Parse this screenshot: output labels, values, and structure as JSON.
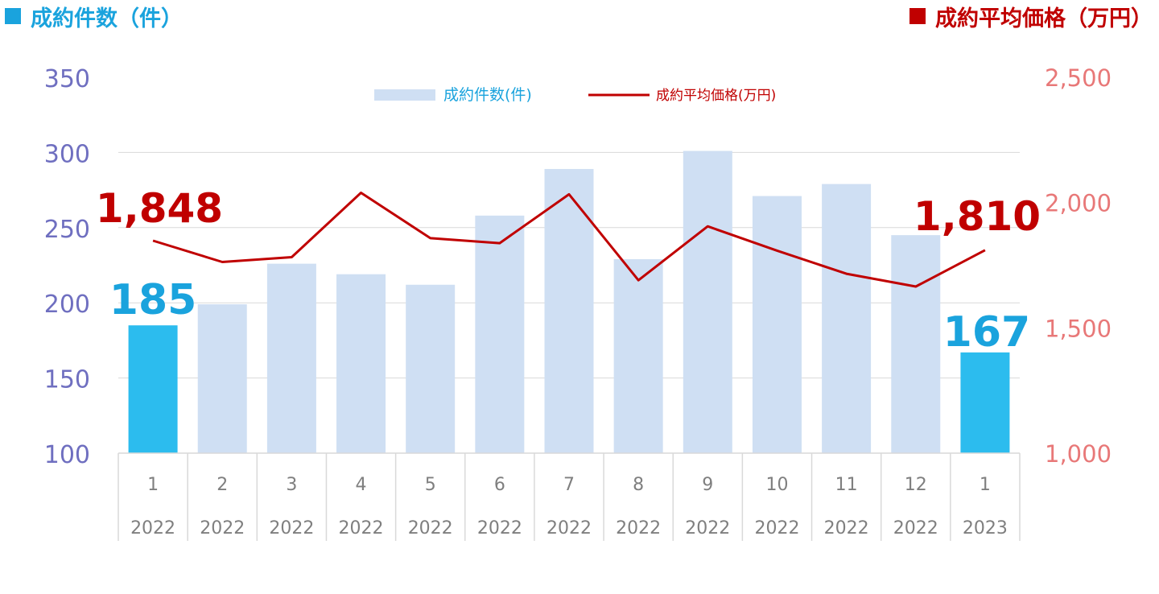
{
  "header": {
    "left_title": "成約件数（件）",
    "right_title": "成約平均価格（万円）"
  },
  "chart_data": {
    "type": "bar",
    "categories": [
      {
        "month": "1",
        "year": "2022"
      },
      {
        "month": "2",
        "year": "2022"
      },
      {
        "month": "3",
        "year": "2022"
      },
      {
        "month": "4",
        "year": "2022"
      },
      {
        "month": "5",
        "year": "2022"
      },
      {
        "month": "6",
        "year": "2022"
      },
      {
        "month": "7",
        "year": "2022"
      },
      {
        "month": "8",
        "year": "2022"
      },
      {
        "month": "9",
        "year": "2022"
      },
      {
        "month": "10",
        "year": "2022"
      },
      {
        "month": "11",
        "year": "2022"
      },
      {
        "month": "12",
        "year": "2022"
      },
      {
        "month": "1",
        "year": "2023"
      }
    ],
    "series": [
      {
        "name": "成約件数(件)",
        "type": "bar",
        "axis": "left",
        "values": [
          185,
          199,
          226,
          219,
          212,
          258,
          289,
          229,
          301,
          271,
          279,
          245,
          167
        ],
        "highlight_indices": [
          0,
          12
        ],
        "color": "#cfdff3",
        "highlight_color": "#2cbcee"
      },
      {
        "name": "成約平均価格(万円)",
        "type": "line",
        "axis": "right",
        "values": [
          1848,
          1763,
          1782,
          2039,
          1858,
          1838,
          2033,
          1690,
          1905,
          1808,
          1716,
          1665,
          1810
        ],
        "color": "#c00000"
      }
    ],
    "y_left": {
      "min": 100,
      "max": 350,
      "ticks": [
        100,
        150,
        200,
        250,
        300,
        350
      ],
      "color": "#6f6fc0"
    },
    "y_right": {
      "min": 1000,
      "max": 2500,
      "ticks": [
        "1,000",
        "1,500",
        "2,000",
        "2,500"
      ],
      "tick_values": [
        1000,
        1500,
        2000,
        2500
      ],
      "color": "#e87878"
    },
    "callouts": {
      "bar_first": "185",
      "bar_last": "167",
      "line_first": "1,848",
      "line_last": "1,810"
    },
    "legend": {
      "position": "top-center",
      "bar_label": "成約件数(件)",
      "line_label": "成約平均価格(万円)"
    },
    "grid": true
  }
}
